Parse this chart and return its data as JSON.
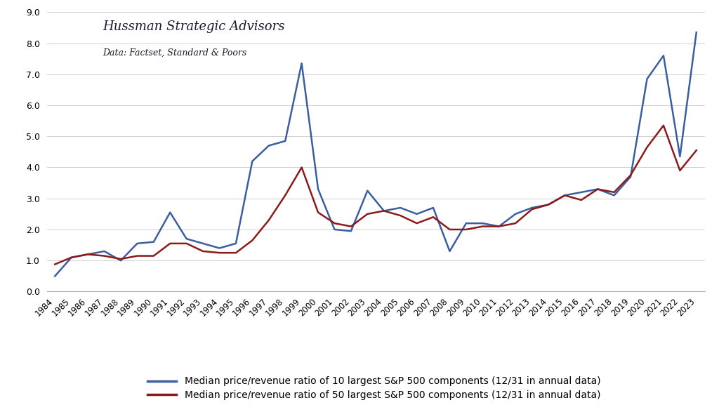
{
  "years": [
    1984,
    1985,
    1986,
    1987,
    1988,
    1989,
    1990,
    1991,
    1992,
    1993,
    1994,
    1995,
    1996,
    1997,
    1998,
    1999,
    2000,
    2001,
    2002,
    2003,
    2004,
    2005,
    2006,
    2007,
    2008,
    2009,
    2010,
    2011,
    2012,
    2013,
    2014,
    2015,
    2016,
    2017,
    2018,
    2019,
    2020,
    2021,
    2022,
    2023
  ],
  "top10": [
    0.5,
    1.1,
    1.2,
    1.3,
    1.0,
    1.55,
    1.6,
    2.55,
    1.7,
    1.55,
    1.4,
    1.55,
    4.2,
    4.7,
    4.85,
    7.35,
    3.3,
    2.0,
    1.95,
    3.25,
    2.6,
    2.7,
    2.5,
    2.7,
    1.3,
    2.2,
    2.2,
    2.1,
    2.5,
    2.7,
    2.8,
    3.1,
    3.2,
    3.3,
    3.1,
    3.7,
    6.85,
    7.6,
    4.35,
    8.35
  ],
  "top50": [
    0.88,
    1.1,
    1.2,
    1.15,
    1.05,
    1.15,
    1.15,
    1.55,
    1.55,
    1.3,
    1.25,
    1.25,
    1.65,
    2.3,
    3.1,
    4.0,
    2.55,
    2.2,
    2.1,
    2.5,
    2.6,
    2.45,
    2.2,
    2.4,
    2.0,
    2.0,
    2.1,
    2.1,
    2.2,
    2.65,
    2.8,
    3.1,
    2.95,
    3.3,
    3.2,
    3.75,
    4.65,
    5.35,
    3.9,
    4.55
  ],
  "line10_color": "#3a5fa0",
  "line50_color": "#8b1a1a",
  "title_main": "Hussman Strategic Advisors",
  "title_sub": "Data: Factset, Standard & Poors",
  "legend_10": "Median price/revenue ratio of 10 largest S&P 500 components (12/31 in annual data)",
  "legend_50": "Median price/revenue ratio of 50 largest S&P 500 components (12/31 in annual data)",
  "ylim": [
    0.0,
    9.0
  ],
  "yticks": [
    0.0,
    1.0,
    2.0,
    3.0,
    4.0,
    5.0,
    6.0,
    7.0,
    8.0,
    9.0
  ],
  "bg_color": "#ffffff",
  "grid_color": "#d0d0d0",
  "title_fontsize": 13,
  "subtitle_fontsize": 9,
  "tick_fontsize": 8.5,
  "legend_fontsize": 10
}
